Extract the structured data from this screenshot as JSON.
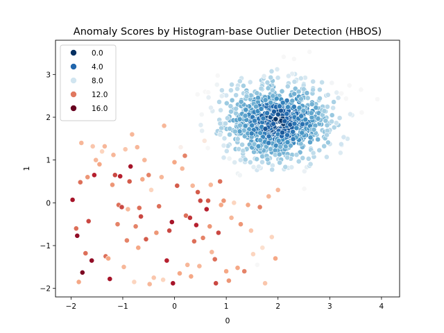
{
  "chart_data": {
    "type": "scatter",
    "title": "Anomaly Scores by Histogram-base Outlier Detection (HBOS)",
    "xlabel": "0",
    "ylabel": "1",
    "xlim": [
      -2.3,
      4.35
    ],
    "ylim": [
      -2.2,
      3.8
    ],
    "xticks": [
      -2,
      -1,
      0,
      1,
      2,
      3,
      4
    ],
    "yticks": [
      -2,
      -1,
      0,
      1,
      2,
      3
    ],
    "xtick_labels": [
      "−2",
      "−1",
      "0",
      "1",
      "2",
      "3",
      "4"
    ],
    "ytick_labels": [
      "−2",
      "−1",
      "0",
      "1",
      "2",
      "3"
    ],
    "grid": false,
    "legend": {
      "position": "top-left",
      "entries": [
        {
          "label": "0.0",
          "color": "#053061"
        },
        {
          "label": "4.0",
          "color": "#2166ac"
        },
        {
          "label": "8.0",
          "color": "#d1e5f0"
        },
        {
          "label": "12.0",
          "color": "#e0785f"
        },
        {
          "label": "16.0",
          "color": "#67001f"
        }
      ]
    },
    "colormap": "RdBu_r",
    "score_range": [
      0,
      18
    ],
    "colormap_stops": [
      [
        0.0,
        "#053061"
      ],
      [
        0.1,
        "#2166ac"
      ],
      [
        0.2,
        "#4393c3"
      ],
      [
        0.3,
        "#92c5de"
      ],
      [
        0.42,
        "#d1e5f0"
      ],
      [
        0.5,
        "#f7f7f7"
      ],
      [
        0.6,
        "#fddbc7"
      ],
      [
        0.7,
        "#f4a582"
      ],
      [
        0.8,
        "#d6604d"
      ],
      [
        0.9,
        "#b2182b"
      ],
      [
        1.0,
        "#67001f"
      ]
    ],
    "outlier_points": [
      [
        -1.97,
        0.07,
        16.5
      ],
      [
        -1.9,
        -0.6,
        14
      ],
      [
        -1.88,
        -0.77,
        17
      ],
      [
        -1.85,
        -1.85,
        12.5
      ],
      [
        -1.82,
        0.48,
        14
      ],
      [
        -1.8,
        1.4,
        12
      ],
      [
        -1.78,
        -1.63,
        17.5
      ],
      [
        -1.72,
        -1.18,
        14
      ],
      [
        -1.68,
        0.6,
        13
      ],
      [
        -1.66,
        -0.43,
        15
      ],
      [
        -1.6,
        -1.35,
        17
      ],
      [
        -1.58,
        1.32,
        11.5
      ],
      [
        -1.55,
        0.65,
        16
      ],
      [
        -1.52,
        1.0,
        12
      ],
      [
        -1.45,
        0.9,
        12.5
      ],
      [
        -1.4,
        1.2,
        11
      ],
      [
        -1.35,
        1.32,
        12
      ],
      [
        -1.33,
        -1.25,
        14
      ],
      [
        -1.28,
        -1.3,
        12.5
      ],
      [
        -1.25,
        -1.78,
        16.5
      ],
      [
        -1.2,
        0.42,
        13
      ],
      [
        -1.18,
        1.12,
        12
      ],
      [
        -1.15,
        0.65,
        15
      ],
      [
        -1.1,
        -0.5,
        13.5
      ],
      [
        -1.08,
        -0.05,
        14
      ],
      [
        -1.05,
        0.62,
        16
      ],
      [
        -1.02,
        -0.1,
        15
      ],
      [
        -0.98,
        -1.5,
        12
      ],
      [
        -0.95,
        1.25,
        11.5
      ],
      [
        -0.92,
        -0.88,
        13.5
      ],
      [
        -0.9,
        -0.15,
        12
      ],
      [
        -0.87,
        0.5,
        14.5
      ],
      [
        -0.85,
        0.85,
        16.5
      ],
      [
        -0.82,
        1.6,
        12
      ],
      [
        -0.78,
        -1.85,
        11
      ],
      [
        -0.75,
        -0.55,
        13.5
      ],
      [
        -0.72,
        1.3,
        12
      ],
      [
        -0.7,
        -1.05,
        12.5
      ],
      [
        -0.68,
        -0.12,
        14
      ],
      [
        -0.65,
        -0.32,
        15
      ],
      [
        -0.62,
        0.55,
        12.5
      ],
      [
        -0.58,
        1.0,
        12
      ],
      [
        -0.55,
        -0.85,
        14.5
      ],
      [
        -0.5,
        0.65,
        13.5
      ],
      [
        -0.48,
        -1.9,
        12
      ],
      [
        -0.45,
        0.3,
        11
      ],
      [
        -0.4,
        -1.75,
        11.5
      ],
      [
        -0.35,
        -0.7,
        13
      ],
      [
        -0.3,
        -0.08,
        14
      ],
      [
        -0.25,
        0.6,
        12
      ],
      [
        -0.22,
        -1.8,
        11
      ],
      [
        -0.2,
        1.8,
        12
      ],
      [
        -0.15,
        -1.35,
        16
      ],
      [
        -0.1,
        -0.65,
        15
      ],
      [
        -0.05,
        -0.45,
        16.5
      ],
      [
        -0.03,
        -1.88,
        16.5
      ],
      [
        0.0,
        0.95,
        12.5
      ],
      [
        0.05,
        0.4,
        14.5
      ],
      [
        0.1,
        -1.65,
        12.5
      ],
      [
        0.12,
        1.3,
        9.5
      ],
      [
        0.15,
        0.8,
        12
      ],
      [
        0.2,
        1.1,
        13.5
      ],
      [
        0.22,
        -0.3,
        14
      ],
      [
        0.25,
        -1.45,
        12
      ],
      [
        0.3,
        -0.35,
        15.5
      ],
      [
        0.32,
        -1.72,
        12.5
      ],
      [
        0.35,
        0.4,
        12
      ],
      [
        0.38,
        -0.9,
        14
      ],
      [
        0.42,
        -0.52,
        16
      ],
      [
        0.45,
        0.25,
        14.5
      ],
      [
        0.48,
        -1.48,
        12
      ],
      [
        0.5,
        0.05,
        15
      ],
      [
        0.55,
        -0.82,
        13.5
      ],
      [
        0.58,
        1.45,
        10
      ],
      [
        0.62,
        -0.15,
        16
      ],
      [
        0.65,
        0.05,
        14.5
      ],
      [
        0.68,
        -0.55,
        13
      ],
      [
        0.7,
        0.42,
        12
      ],
      [
        0.72,
        -1.15,
        12
      ],
      [
        0.78,
        -1.32,
        14
      ],
      [
        0.8,
        -1.88,
        15
      ],
      [
        0.85,
        -0.7,
        15
      ],
      [
        0.88,
        0.5,
        14
      ],
      [
        0.9,
        -0.05,
        12.5
      ],
      [
        0.95,
        0.05,
        13
      ],
      [
        1.0,
        -1.6,
        12.5
      ],
      [
        1.05,
        -1.82,
        13
      ],
      [
        1.1,
        -0.35,
        12
      ],
      [
        1.15,
        0.0,
        11
      ],
      [
        1.22,
        -1.52,
        12.5
      ],
      [
        1.28,
        -0.5,
        13
      ],
      [
        1.35,
        -1.6,
        13.5
      ],
      [
        1.42,
        -0.05,
        12.5
      ],
      [
        1.48,
        -0.65,
        11.5
      ],
      [
        1.52,
        -1.2,
        11
      ],
      [
        1.6,
        -1.45,
        9
      ],
      [
        1.65,
        -0.1,
        13.5
      ],
      [
        1.7,
        -1.05,
        10.5
      ],
      [
        1.75,
        -1.88,
        11.5
      ],
      [
        1.82,
        0.15,
        12
      ],
      [
        1.88,
        -0.8,
        11
      ],
      [
        1.95,
        -1.3,
        12.5
      ],
      [
        2.0,
        0.3,
        12
      ]
    ],
    "cluster": {
      "center": [
        2.0,
        1.9
      ],
      "spread": [
        0.55,
        0.48
      ],
      "count": 900,
      "seed": 42
    }
  }
}
